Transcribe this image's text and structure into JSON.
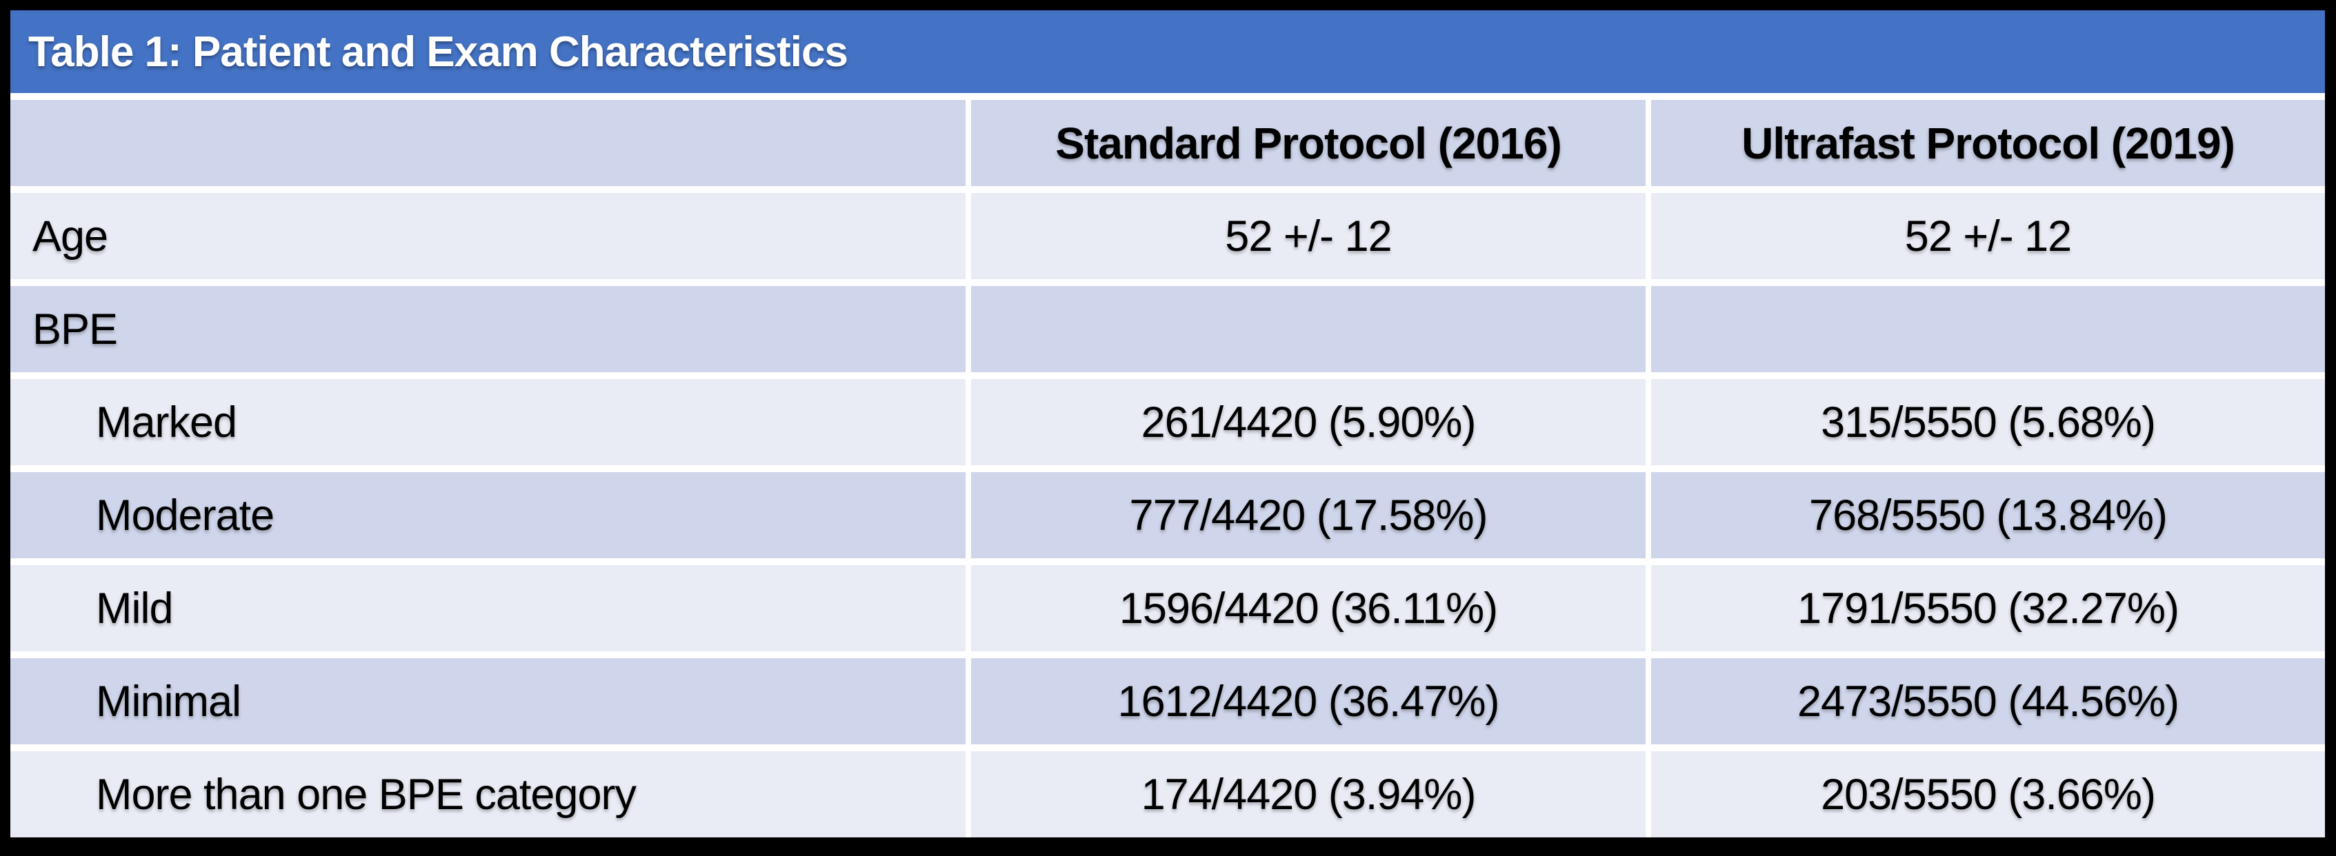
{
  "chart_data": {
    "type": "table",
    "title": "Table 1: Patient and Exam Characteristics",
    "columns": [
      "",
      "Standard Protocol (2016)",
      "Ultrafast Protocol (2019)"
    ],
    "rows": [
      {
        "label": "Age",
        "indent": false,
        "values": [
          "52 +/- 12",
          "52 +/- 12"
        ]
      },
      {
        "label": "BPE",
        "indent": false,
        "values": [
          "",
          ""
        ]
      },
      {
        "label": "Marked",
        "indent": true,
        "values": [
          "261/4420 (5.90%)",
          "315/5550 (5.68%)"
        ]
      },
      {
        "label": "Moderate",
        "indent": true,
        "values": [
          "777/4420 (17.58%)",
          "768/5550 (13.84%)"
        ]
      },
      {
        "label": "Mild",
        "indent": true,
        "values": [
          "1596/4420 (36.11%)",
          "1791/5550 (32.27%)"
        ]
      },
      {
        "label": "Minimal",
        "indent": true,
        "values": [
          "1612/4420 (36.47%)",
          "2473/5550 (44.56%)"
        ]
      },
      {
        "label": "More than one BPE category",
        "indent": true,
        "values": [
          "174/4420 (3.94%)",
          "203/5550 (3.66%)"
        ]
      }
    ],
    "layout_hints": {
      "banded_rows": true,
      "header_position": "top",
      "title_bar": "spans full width"
    }
  },
  "colors": {
    "title_bar": "#4472C4",
    "title_text": "#FFFFFF",
    "header_band": "#CFD5EA",
    "band_dark": "#CFD5EA",
    "band_light": "#E9EBF5",
    "cell_gap": "#FFFFFF",
    "page_background": "#000000",
    "body_text": "#000000"
  }
}
